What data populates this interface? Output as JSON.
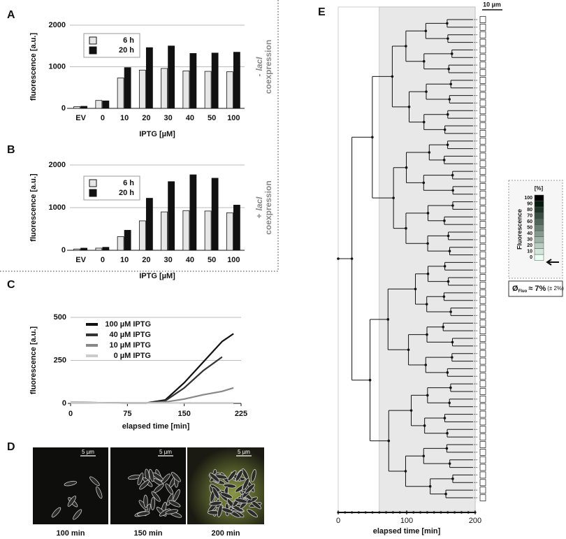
{
  "chart_data": [
    {
      "type": "bar",
      "label": "A",
      "ylabel": "fluorescence [a.u.]",
      "xlabel": "IPTG [µM]",
      "categories": [
        "EV",
        "0",
        "10",
        "20",
        "30",
        "40",
        "50",
        "100"
      ],
      "series": [
        {
          "name": "6 h",
          "color": "#e6e6e6",
          "values": [
            40,
            190,
            730,
            920,
            960,
            900,
            890,
            880
          ]
        },
        {
          "name": "20 h",
          "color": "#111111",
          "values": [
            50,
            180,
            980,
            1460,
            1500,
            1320,
            1330,
            1350
          ]
        }
      ],
      "ylim": [
        0,
        2000
      ],
      "yticks": [
        0,
        1000,
        2000
      ],
      "grid": true,
      "side_note": {
        "sign": "-",
        "gene": "lacI",
        "text": "coexpression"
      }
    },
    {
      "type": "bar",
      "label": "B",
      "ylabel": "fluorescence [a.u.]",
      "xlabel": "IPTG [µM]",
      "categories": [
        "EV",
        "0",
        "10",
        "20",
        "30",
        "40",
        "50",
        "100"
      ],
      "series": [
        {
          "name": "6 h",
          "color": "#e6e6e6",
          "values": [
            30,
            50,
            320,
            690,
            900,
            930,
            920,
            880
          ]
        },
        {
          "name": "20 h",
          "color": "#111111",
          "values": [
            50,
            70,
            470,
            1220,
            1610,
            1770,
            1690,
            1060
          ]
        }
      ],
      "ylim": [
        0,
        2000
      ],
      "yticks": [
        0,
        1000,
        2000
      ],
      "grid": true,
      "side_note": {
        "sign": "+",
        "gene": "lacI",
        "text": "coexpression"
      }
    },
    {
      "type": "line",
      "label": "C",
      "ylabel": "fluorescence [a.u.]",
      "xlabel": "elapsed time [min]",
      "x": [
        0,
        25,
        50,
        75,
        100,
        125,
        150,
        175,
        200,
        215
      ],
      "series": [
        {
          "name": "100 µM IPTG",
          "color": "#111111",
          "values": [
            5,
            4,
            3,
            2,
            2,
            20,
            120,
            240,
            360,
            405
          ]
        },
        {
          "name": "40 µM IPTG",
          "color": "#333333",
          "values": [
            5,
            4,
            3,
            2,
            2,
            15,
            90,
            190,
            270,
            null
          ]
        },
        {
          "name": "10 µM IPTG",
          "color": "#888888",
          "values": [
            5,
            4,
            3,
            2,
            2,
            8,
            25,
            50,
            70,
            90
          ]
        },
        {
          "name": "0 µM IPTG",
          "color": "#cccccc",
          "values": [
            3,
            3,
            2,
            2,
            2,
            2,
            3,
            3,
            3,
            3
          ]
        }
      ],
      "xlim": [
        0,
        225
      ],
      "xticks": [
        0,
        75,
        150,
        225
      ],
      "ylim": [
        0,
        500
      ],
      "yticks": [
        0,
        250,
        500
      ],
      "grid": true
    },
    {
      "type": "tree",
      "label": "E",
      "xlabel": "elapsed time [min]",
      "scale_bar": "10 µm",
      "xlim": [
        0,
        200
      ],
      "xticks": [
        0,
        100,
        200
      ],
      "shade": [
        60,
        200
      ],
      "colorbar": {
        "title": "Fluorescence",
        "unit": "[%]",
        "ticks": [
          0,
          10,
          20,
          30,
          40,
          50,
          60,
          70,
          80,
          90,
          100
        ]
      },
      "mean": {
        "symbol": "Ø",
        "sub": "Fluo",
        "value": "≈ 7%",
        "error": "(± 2%)"
      }
    }
  ],
  "panel_d": {
    "label": "D",
    "images": [
      {
        "scale": "5 µm",
        "time": "100 min"
      },
      {
        "scale": "5 µm",
        "time": "150 min"
      },
      {
        "scale": "5 µm",
        "time": "200 min"
      }
    ]
  }
}
